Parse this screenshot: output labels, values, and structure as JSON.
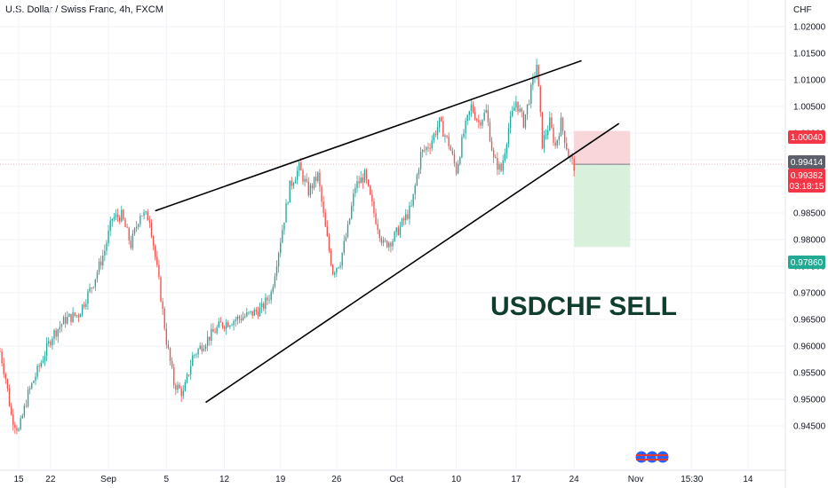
{
  "header": {
    "title": "U.S. Dollar / Swiss Franc, 4h, FXCM",
    "currency": "CHF"
  },
  "annotation": "USDCHF SELL",
  "price_tags": {
    "stop": "1.00040",
    "last": "0.99414",
    "current": "0.99382",
    "countdown": "03:18:15",
    "target": "0.97860"
  },
  "colors": {
    "up": "#26a69a",
    "down": "#ef5350",
    "stop_zone": "#f8d6d9",
    "target_zone": "#d9f0dc",
    "stop_tag": "#f23645",
    "target_tag": "#22ab94",
    "last_tag": "#5d606b",
    "trendline": "#000000"
  },
  "chart_data": {
    "type": "candlestick",
    "title": "U.S. Dollar / Swiss Franc, 4h, FXCM",
    "ylim": [
      0.9425,
      1.0225
    ],
    "y_ticks": [
      "1.02000",
      "1.01500",
      "1.01000",
      "1.00500",
      "1.00000",
      "0.99500",
      "0.99000",
      "0.98500",
      "0.98000",
      "0.97500",
      "0.97000",
      "0.96500",
      "0.96000",
      "0.95500",
      "0.95000",
      "0.94500"
    ],
    "y_tick_values": [
      1.02,
      1.015,
      1.01,
      1.005,
      1.0,
      0.995,
      0.99,
      0.985,
      0.98,
      0.975,
      0.97,
      0.965,
      0.96,
      0.955,
      0.95,
      0.945
    ],
    "x_ticks": [
      "15",
      "22",
      "Sep",
      "5",
      "12",
      "19",
      "26",
      "Oct",
      "10",
      "17",
      "24",
      "Nov",
      "15:30",
      "14"
    ],
    "x_tick_index": [
      10,
      27,
      58,
      89,
      120,
      150,
      180,
      212,
      244,
      276,
      307,
      340,
      370,
      400
    ],
    "path_points": [
      {
        "i": 0,
        "p": 0.959
      },
      {
        "i": 3,
        "p": 0.954
      },
      {
        "i": 6,
        "p": 0.947
      },
      {
        "i": 10,
        "p": 0.944
      },
      {
        "i": 15,
        "p": 0.951
      },
      {
        "i": 22,
        "p": 0.957
      },
      {
        "i": 28,
        "p": 0.962
      },
      {
        "i": 35,
        "p": 0.965
      },
      {
        "i": 42,
        "p": 0.966
      },
      {
        "i": 50,
        "p": 0.972
      },
      {
        "i": 56,
        "p": 0.978
      },
      {
        "i": 60,
        "p": 0.984
      },
      {
        "i": 65,
        "p": 0.9845
      },
      {
        "i": 70,
        "p": 0.979
      },
      {
        "i": 75,
        "p": 0.985
      },
      {
        "i": 80,
        "p": 0.984
      },
      {
        "i": 85,
        "p": 0.972
      },
      {
        "i": 89,
        "p": 0.961
      },
      {
        "i": 93,
        "p": 0.953
      },
      {
        "i": 98,
        "p": 0.951
      },
      {
        "i": 103,
        "p": 0.958
      },
      {
        "i": 110,
        "p": 0.961
      },
      {
        "i": 118,
        "p": 0.964
      },
      {
        "i": 126,
        "p": 0.965
      },
      {
        "i": 134,
        "p": 0.966
      },
      {
        "i": 140,
        "p": 0.967
      },
      {
        "i": 145,
        "p": 0.97
      },
      {
        "i": 150,
        "p": 0.98
      },
      {
        "i": 155,
        "p": 0.99
      },
      {
        "i": 160,
        "p": 0.9935
      },
      {
        "i": 165,
        "p": 0.989
      },
      {
        "i": 170,
        "p": 0.992
      },
      {
        "i": 174,
        "p": 0.982
      },
      {
        "i": 178,
        "p": 0.974
      },
      {
        "i": 182,
        "p": 0.976
      },
      {
        "i": 186,
        "p": 0.982
      },
      {
        "i": 190,
        "p": 0.99
      },
      {
        "i": 195,
        "p": 0.992
      },
      {
        "i": 200,
        "p": 0.985
      },
      {
        "i": 205,
        "p": 0.979
      },
      {
        "i": 210,
        "p": 0.98
      },
      {
        "i": 215,
        "p": 0.983
      },
      {
        "i": 220,
        "p": 0.986
      },
      {
        "i": 225,
        "p": 0.996
      },
      {
        "i": 230,
        "p": 0.998
      },
      {
        "i": 235,
        "p": 1.002
      },
      {
        "i": 240,
        "p": 0.998
      },
      {
        "i": 244,
        "p": 0.993
      },
      {
        "i": 248,
        "p": 1.0
      },
      {
        "i": 252,
        "p": 1.005
      },
      {
        "i": 256,
        "p": 1.002
      },
      {
        "i": 260,
        "p": 1.004
      },
      {
        "i": 264,
        "p": 0.995
      },
      {
        "i": 268,
        "p": 0.993
      },
      {
        "i": 272,
        "p": 1.001
      },
      {
        "i": 276,
        "p": 1.006
      },
      {
        "i": 280,
        "p": 1.002
      },
      {
        "i": 284,
        "p": 1.008
      },
      {
        "i": 287,
        "p": 1.013
      },
      {
        "i": 290,
        "p": 0.998
      },
      {
        "i": 294,
        "p": 1.002
      },
      {
        "i": 297,
        "p": 0.9975
      },
      {
        "i": 300,
        "p": 1.002
      },
      {
        "i": 304,
        "p": 0.996
      },
      {
        "i": 307,
        "p": 0.9938
      }
    ],
    "wedge_upper": [
      {
        "i": 83,
        "p": 0.9854
      },
      {
        "i": 311,
        "p": 1.0136
      }
    ],
    "wedge_lower": [
      {
        "i": 110,
        "p": 0.9494
      },
      {
        "i": 331,
        "p": 1.0018
      }
    ],
    "position": {
      "entry": 0.99414,
      "stop": 1.0004,
      "target": 0.9786,
      "start_i": 307,
      "end_i": 337
    },
    "candle_count": 308
  }
}
